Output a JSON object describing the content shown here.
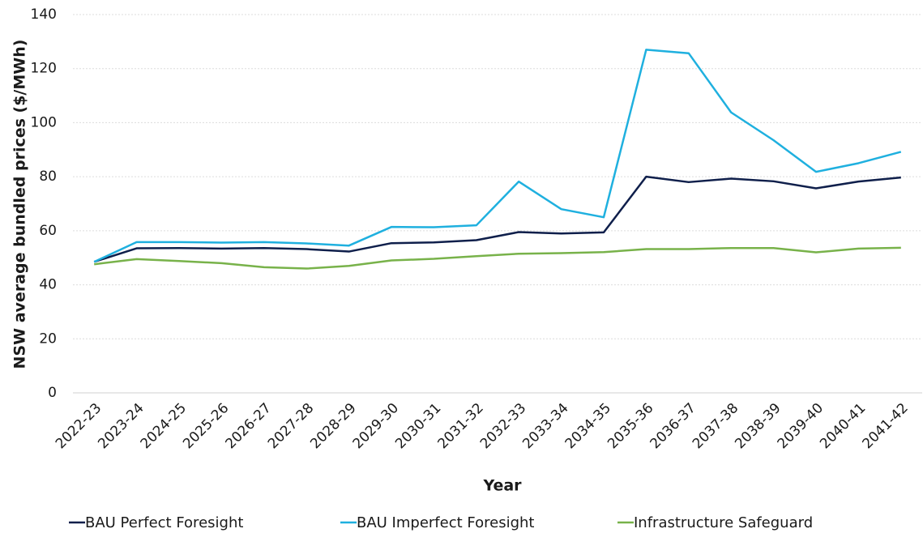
{
  "chart_data": {
    "type": "line",
    "y_axis_label": "NSW average bundled prices ($/MWh)",
    "x_axis_label": "Year",
    "categories": [
      "2022-23",
      "2023-24",
      "2024-25",
      "2025-26",
      "2026-27",
      "2027-28",
      "2028-29",
      "2029-30",
      "2030-31",
      "2031-32",
      "2032-33",
      "2033-34",
      "2034-35",
      "2035-36",
      "2036-37",
      "2037-38",
      "2038-39",
      "2039-40",
      "2040-41",
      "2041-42"
    ],
    "series": [
      {
        "name": "BAU Perfect Foresight",
        "color": "#0f1f4b",
        "values": [
          48.5,
          53.5,
          53.6,
          53.4,
          53.6,
          53.2,
          52.3,
          55.4,
          55.7,
          56.5,
          59.5,
          59,
          59.4,
          80,
          78,
          79.3,
          78.3,
          75.7,
          78.2,
          79.7
        ]
      },
      {
        "name": "BAU Imperfect Foresight",
        "color": "#1fb0df",
        "values": [
          48.5,
          55.8,
          55.8,
          55.6,
          55.8,
          55.3,
          54.5,
          61.4,
          61.3,
          62,
          78.2,
          68,
          65,
          127,
          125.7,
          103.8,
          93.5,
          81.8,
          85,
          89.2
        ]
      },
      {
        "name": "Infrastructure Safeguard",
        "color": "#78b24a",
        "values": [
          47.6,
          49.5,
          48.8,
          48,
          46.5,
          46,
          47,
          49,
          49.6,
          50.6,
          51.5,
          51.7,
          52.1,
          53.2,
          53.2,
          53.6,
          53.6,
          52,
          53.4,
          53.7
        ]
      }
    ],
    "ylim": [
      0,
      140
    ],
    "yticks": [
      0,
      20,
      40,
      60,
      80,
      100,
      120,
      140
    ],
    "grid": true,
    "legend": "bottom"
  }
}
